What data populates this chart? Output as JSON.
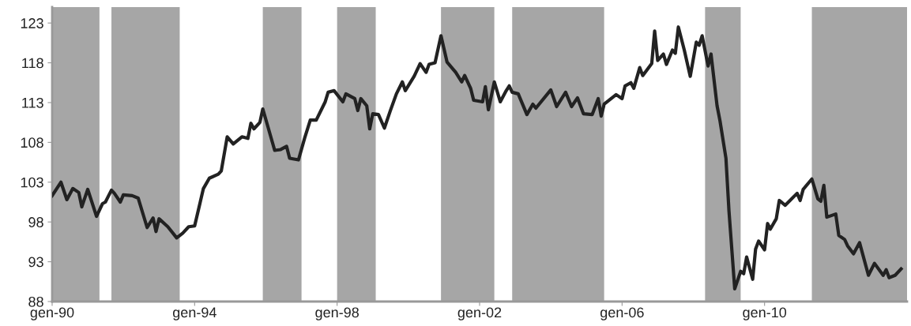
{
  "chart_data": {
    "type": "line",
    "x": [
      "1990-01",
      "1990-04",
      "1990-06",
      "1990-08",
      "1990-10",
      "1990-11",
      "1991-01",
      "1991-04",
      "1991-06",
      "1991-07",
      "1991-09",
      "1991-10",
      "1991-12",
      "1992-01",
      "1992-04",
      "1992-06",
      "1992-09",
      "1992-11",
      "1992-12",
      "1993-01",
      "1993-04",
      "1993-07",
      "1993-09",
      "1993-11",
      "1994-01",
      "1994-04",
      "1994-06",
      "1994-09",
      "1994-10",
      "1994-12",
      "1995-02",
      "1995-05",
      "1995-07",
      "1995-08",
      "1995-09",
      "1995-11",
      "1995-12",
      "1996-04",
      "1996-06",
      "1996-08",
      "1996-09",
      "1996-12",
      "1997-02",
      "1997-04",
      "1997-06",
      "1997-09",
      "1997-10",
      "1997-12",
      "1998-03",
      "1998-04",
      "1998-07",
      "1998-08",
      "1998-09",
      "1998-11",
      "1998-12",
      "1999-01",
      "1999-03",
      "1999-05",
      "1999-07",
      "1999-09",
      "1999-11",
      "1999-12",
      "2000-03",
      "2000-05",
      "2000-07",
      "2000-08",
      "2000-10",
      "2000-12",
      "2001-02",
      "2001-05",
      "2001-07",
      "2001-08",
      "2001-10",
      "2001-11",
      "2002-02",
      "2002-03",
      "2002-04",
      "2002-06",
      "2002-08",
      "2002-10",
      "2002-11",
      "2002-12",
      "2003-02",
      "2003-05",
      "2003-07",
      "2003-08",
      "2004-01",
      "2004-03",
      "2004-06",
      "2004-08",
      "2004-10",
      "2004-12",
      "2005-03",
      "2005-05",
      "2005-06",
      "2005-07",
      "2005-11",
      "2006-01",
      "2006-02",
      "2006-04",
      "2006-05",
      "2006-07",
      "2006-08",
      "2006-11",
      "2006-12",
      "2007-01",
      "2007-03",
      "2007-04",
      "2007-06",
      "2007-07",
      "2007-08",
      "2007-10",
      "2007-12",
      "2008-02",
      "2008-03",
      "2008-04",
      "2008-06",
      "2008-07",
      "2008-09",
      "2008-10",
      "2008-12",
      "2009-01",
      "2009-03",
      "2009-05",
      "2009-06",
      "2009-07",
      "2009-09",
      "2009-10",
      "2009-11",
      "2010-01",
      "2010-02",
      "2010-03",
      "2010-05",
      "2010-06",
      "2010-08",
      "2010-12",
      "2011-01",
      "2011-02",
      "2011-05",
      "2011-07",
      "2011-08",
      "2011-09",
      "2011-10",
      "2012-01",
      "2012-02",
      "2012-04",
      "2012-05",
      "2012-07",
      "2012-09",
      "2012-12",
      "2013-02",
      "2013-05",
      "2013-06",
      "2013-07",
      "2013-09",
      "2013-11"
    ],
    "series": [
      {
        "color": "#222222",
        "values": [
          101.3,
          103.0,
          100.8,
          102.2,
          101.7,
          99.9,
          102.1,
          98.7,
          100.3,
          100.5,
          102.0,
          101.6,
          100.5,
          101.4,
          101.3,
          101.0,
          97.3,
          98.5,
          96.8,
          98.4,
          97.4,
          96.0,
          96.6,
          97.4,
          97.5,
          102.2,
          103.5,
          104.0,
          104.4,
          108.7,
          107.8,
          108.7,
          108.5,
          110.4,
          109.7,
          110.5,
          112.2,
          107.0,
          107.1,
          107.5,
          106.0,
          105.8,
          108.5,
          110.8,
          110.8,
          113.1,
          114.3,
          114.5,
          113.1,
          114.1,
          113.5,
          112.0,
          113.5,
          112.6,
          109.7,
          111.6,
          111.5,
          109.8,
          112.0,
          114.1,
          115.6,
          114.5,
          116.3,
          117.9,
          116.8,
          117.8,
          118.0,
          121.4,
          118.1,
          116.8,
          115.6,
          116.4,
          114.8,
          113.3,
          113.1,
          115.0,
          112.1,
          115.6,
          113.1,
          114.5,
          115.1,
          114.3,
          114.1,
          111.5,
          112.8,
          112.3,
          114.6,
          112.5,
          114.3,
          112.5,
          113.6,
          111.6,
          111.5,
          113.5,
          111.3,
          112.8,
          114.0,
          113.5,
          115.1,
          115.5,
          114.8,
          117.4,
          116.4,
          117.9,
          122.0,
          118.3,
          119.1,
          117.8,
          119.6,
          119.2,
          122.5,
          119.6,
          116.3,
          120.6,
          120.2,
          121.4,
          117.6,
          119.1,
          112.6,
          110.7,
          106.0,
          99.4,
          89.6,
          91.8,
          91.5,
          93.6,
          90.8,
          94.6,
          95.6,
          94.5,
          97.8,
          97.1,
          98.4,
          100.7,
          100.1,
          101.6,
          100.7,
          102.1,
          103.4,
          100.9,
          100.6,
          102.6,
          98.6,
          99.0,
          96.3,
          95.8,
          95.0,
          94.0,
          95.4,
          91.3,
          92.8,
          91.3,
          92.0,
          91.0,
          91.3,
          92.1
        ]
      }
    ],
    "xlim": [
      "1990-01",
      "2014-01"
    ],
    "xticks": [
      {
        "value": "1990-01",
        "label": "gen-90"
      },
      {
        "value": "1994-01",
        "label": "gen-94"
      },
      {
        "value": "1998-01",
        "label": "gen-98"
      },
      {
        "value": "2002-01",
        "label": "gen-02"
      },
      {
        "value": "2006-01",
        "label": "gen-06"
      },
      {
        "value": "2010-01",
        "label": "gen-10"
      }
    ],
    "ylim": [
      88,
      125
    ],
    "yticks": [
      88,
      93,
      98,
      103,
      108,
      113,
      118,
      123
    ],
    "bands": [
      {
        "axis": "x",
        "from": "1990-01",
        "to": "1991-05",
        "color": "#a6a6a6"
      },
      {
        "axis": "x",
        "from": "1991-09",
        "to": "1993-08",
        "color": "#a6a6a6"
      },
      {
        "axis": "x",
        "from": "1995-12",
        "to": "1997-01",
        "color": "#a6a6a6"
      },
      {
        "axis": "x",
        "from": "1998-01",
        "to": "1999-02",
        "color": "#a6a6a6"
      },
      {
        "axis": "x",
        "from": "2000-12",
        "to": "2002-06",
        "color": "#a6a6a6"
      },
      {
        "axis": "x",
        "from": "2002-12",
        "to": "2005-07",
        "color": "#a6a6a6"
      },
      {
        "axis": "x",
        "from": "2008-05",
        "to": "2009-05",
        "color": "#a6a6a6"
      },
      {
        "axis": "x",
        "from": "2011-05",
        "to": "2014-01",
        "color": "#a6a6a6"
      }
    ],
    "grid": false,
    "legend": false,
    "marker": "none",
    "line_style": "solid"
  }
}
